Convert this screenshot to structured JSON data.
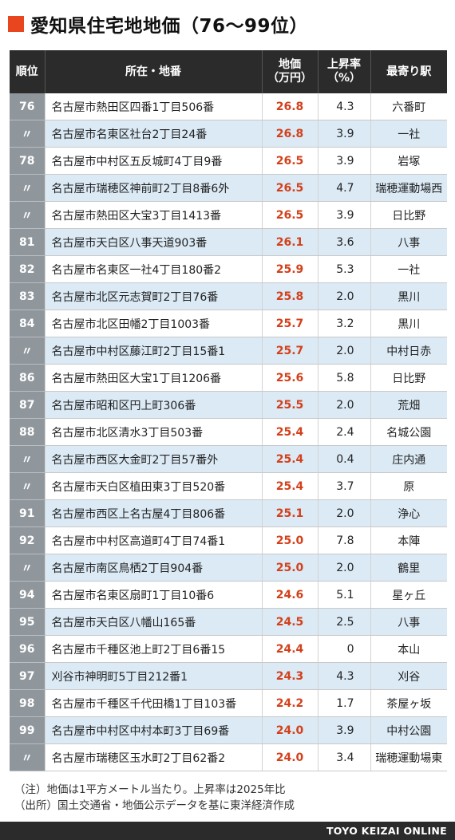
{
  "title": "愛知県住宅地地価（76～99位）",
  "colors": {
    "accent": "#e8461f",
    "price": "#d3401a",
    "header": "#2b2b2b",
    "row_alt": "#dbeaf5",
    "rank_bg": "#8f969c"
  },
  "headers": {
    "rank": "順位",
    "address": "所在・地番",
    "price_line1": "地価",
    "price_line2": "（万円）",
    "rate_line1": "上昇率",
    "rate_line2": "（%）",
    "station": "最寄り駅"
  },
  "rows": [
    {
      "rank": "76",
      "address": "名古屋市熱田区四番1丁目506番",
      "price": "26.8",
      "rate": "4.3",
      "station": "六番町"
    },
    {
      "rank": "〃",
      "address": "名古屋市名東区社台2丁目24番",
      "price": "26.8",
      "rate": "3.9",
      "station": "一社"
    },
    {
      "rank": "78",
      "address": "名古屋市中村区五反城町4丁目9番",
      "price": "26.5",
      "rate": "3.9",
      "station": "岩塚"
    },
    {
      "rank": "〃",
      "address": "名古屋市瑞穂区神前町2丁目8番6外",
      "price": "26.5",
      "rate": "4.7",
      "station": "瑞穂運動場西"
    },
    {
      "rank": "〃",
      "address": "名古屋市熱田区大宝3丁目1413番",
      "price": "26.5",
      "rate": "3.9",
      "station": "日比野"
    },
    {
      "rank": "81",
      "address": "名古屋市天白区八事天道903番",
      "price": "26.1",
      "rate": "3.6",
      "station": "八事"
    },
    {
      "rank": "82",
      "address": "名古屋市名東区一社4丁目180番2",
      "price": "25.9",
      "rate": "5.3",
      "station": "一社"
    },
    {
      "rank": "83",
      "address": "名古屋市北区元志賀町2丁目76番",
      "price": "25.8",
      "rate": "2.0",
      "station": "黒川"
    },
    {
      "rank": "84",
      "address": "名古屋市北区田幡2丁目1003番",
      "price": "25.7",
      "rate": "3.2",
      "station": "黒川"
    },
    {
      "rank": "〃",
      "address": "名古屋市中村区藤江町2丁目15番1",
      "price": "25.7",
      "rate": "2.0",
      "station": "中村日赤"
    },
    {
      "rank": "86",
      "address": "名古屋市熱田区大宝1丁目1206番",
      "price": "25.6",
      "rate": "5.8",
      "station": "日比野"
    },
    {
      "rank": "87",
      "address": "名古屋市昭和区円上町306番",
      "price": "25.5",
      "rate": "2.0",
      "station": "荒畑"
    },
    {
      "rank": "88",
      "address": "名古屋市北区清水3丁目503番",
      "price": "25.4",
      "rate": "2.4",
      "station": "名城公園"
    },
    {
      "rank": "〃",
      "address": "名古屋市西区大金町2丁目57番外",
      "price": "25.4",
      "rate": "0.4",
      "station": "庄内通"
    },
    {
      "rank": "〃",
      "address": "名古屋市天白区植田東3丁目520番",
      "price": "25.4",
      "rate": "3.7",
      "station": "原"
    },
    {
      "rank": "91",
      "address": "名古屋市西区上名古屋4丁目806番",
      "price": "25.1",
      "rate": "2.0",
      "station": "浄心"
    },
    {
      "rank": "92",
      "address": "名古屋市中村区高道町4丁目74番1",
      "price": "25.0",
      "rate": "7.8",
      "station": "本陣"
    },
    {
      "rank": "〃",
      "address": "名古屋市南区鳥栖2丁目904番",
      "price": "25.0",
      "rate": "2.0",
      "station": "鶴里"
    },
    {
      "rank": "94",
      "address": "名古屋市名東区扇町1丁目10番6",
      "price": "24.6",
      "rate": "5.1",
      "station": "星ヶ丘"
    },
    {
      "rank": "95",
      "address": "名古屋市天白区八幡山165番",
      "price": "24.5",
      "rate": "2.5",
      "station": "八事"
    },
    {
      "rank": "96",
      "address": "名古屋市千種区池上町2丁目6番15",
      "price": "24.4",
      "rate": "0",
      "station": "本山"
    },
    {
      "rank": "97",
      "address": "刈谷市神明町5丁目212番1",
      "price": "24.3",
      "rate": "4.3",
      "station": "刈谷"
    },
    {
      "rank": "98",
      "address": "名古屋市千種区千代田橋1丁目103番",
      "price": "24.2",
      "rate": "1.7",
      "station": "茶屋ヶ坂"
    },
    {
      "rank": "99",
      "address": "名古屋市中村区中村本町3丁目69番",
      "price": "24.0",
      "rate": "3.9",
      "station": "中村公園"
    },
    {
      "rank": "〃",
      "address": "名古屋市瑞穂区玉水町2丁目62番2",
      "price": "24.0",
      "rate": "3.4",
      "station": "瑞穂運動場東"
    }
  ],
  "notes": {
    "note1": "（注）地価は1平方メートル当たり。上昇率は2025年比",
    "note2": "（出所）国土交通省・地価公示データを基に東洋経済作成"
  },
  "footer": "TOYO KEIZAI ONLINE"
}
